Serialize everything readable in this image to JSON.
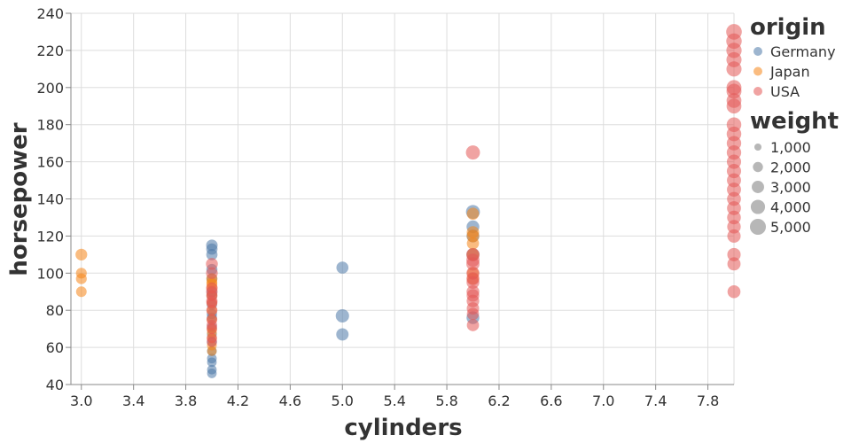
{
  "chart_data": {
    "type": "scatter",
    "xlabel": "cylinders",
    "ylabel": "horsepower",
    "xlim": [
      2.92,
      8.0
    ],
    "ylim": [
      40,
      240
    ],
    "x_ticks": [
      "3.0",
      "3.4",
      "3.8",
      "4.2",
      "4.6",
      "5.0",
      "5.4",
      "5.8",
      "6.2",
      "6.6",
      "7.0",
      "7.4",
      "7.8"
    ],
    "y_ticks": [
      "40",
      "60",
      "80",
      "100",
      "120",
      "140",
      "160",
      "180",
      "200",
      "220",
      "240"
    ],
    "grid": true,
    "legend_position": "right",
    "color_legend": {
      "title": "origin",
      "entries": [
        {
          "name": "Germany",
          "color": "#4c78a8"
        },
        {
          "name": "Japan",
          "color": "#f58518"
        },
        {
          "name": "USA",
          "color": "#e45756"
        }
      ]
    },
    "size_legend": {
      "title": "weight",
      "entries": [
        {
          "label": "1,000",
          "value": 1000
        },
        {
          "label": "2,000",
          "value": 2000
        },
        {
          "label": "3,000",
          "value": 3000
        },
        {
          "label": "4,000",
          "value": 4000
        },
        {
          "label": "5,000",
          "value": 5000
        }
      ]
    },
    "series": [
      {
        "name": "Germany",
        "points": [
          {
            "x": 4,
            "y": 115,
            "weight": 2600
          },
          {
            "x": 4,
            "y": 113,
            "weight": 2500
          },
          {
            "x": 4,
            "y": 110,
            "weight": 2500
          },
          {
            "x": 4,
            "y": 102,
            "weight": 2400
          },
          {
            "x": 4,
            "y": 97,
            "weight": 2300
          },
          {
            "x": 4,
            "y": 90,
            "weight": 2200
          },
          {
            "x": 4,
            "y": 88,
            "weight": 2200
          },
          {
            "x": 4,
            "y": 83,
            "weight": 2100
          },
          {
            "x": 4,
            "y": 78,
            "weight": 2100
          },
          {
            "x": 4,
            "y": 76,
            "weight": 2000
          },
          {
            "x": 4,
            "y": 71,
            "weight": 1950
          },
          {
            "x": 4,
            "y": 67,
            "weight": 1900
          },
          {
            "x": 4,
            "y": 63,
            "weight": 1900
          },
          {
            "x": 4,
            "y": 58,
            "weight": 1850
          },
          {
            "x": 4,
            "y": 54,
            "weight": 1850
          },
          {
            "x": 4,
            "y": 52,
            "weight": 1800
          },
          {
            "x": 4,
            "y": 48,
            "weight": 1800
          },
          {
            "x": 4,
            "y": 46,
            "weight": 1800
          },
          {
            "x": 5,
            "y": 103,
            "weight": 2850
          },
          {
            "x": 5,
            "y": 77,
            "weight": 3500
          },
          {
            "x": 5,
            "y": 67,
            "weight": 3000
          },
          {
            "x": 6,
            "y": 133,
            "weight": 3800
          },
          {
            "x": 6,
            "y": 125,
            "weight": 3200
          },
          {
            "x": 6,
            "y": 120,
            "weight": 3200
          },
          {
            "x": 6,
            "y": 110,
            "weight": 3200
          },
          {
            "x": 6,
            "y": 76,
            "weight": 3200
          }
        ]
      },
      {
        "name": "Japan",
        "points": [
          {
            "x": 3,
            "y": 110,
            "weight": 2700
          },
          {
            "x": 3,
            "y": 100,
            "weight": 2300
          },
          {
            "x": 3,
            "y": 97,
            "weight": 2300
          },
          {
            "x": 3,
            "y": 90,
            "weight": 2200
          },
          {
            "x": 4,
            "y": 97,
            "weight": 2400
          },
          {
            "x": 4,
            "y": 95,
            "weight": 2300
          },
          {
            "x": 4,
            "y": 94,
            "weight": 2300
          },
          {
            "x": 4,
            "y": 92,
            "weight": 2300
          },
          {
            "x": 4,
            "y": 88,
            "weight": 2200
          },
          {
            "x": 4,
            "y": 84,
            "weight": 2100
          },
          {
            "x": 4,
            "y": 80,
            "weight": 2100
          },
          {
            "x": 4,
            "y": 75,
            "weight": 2000
          },
          {
            "x": 4,
            "y": 70,
            "weight": 1950
          },
          {
            "x": 4,
            "y": 68,
            "weight": 1900
          },
          {
            "x": 4,
            "y": 65,
            "weight": 1900
          },
          {
            "x": 4,
            "y": 61,
            "weight": 1850
          },
          {
            "x": 4,
            "y": 58,
            "weight": 1800
          },
          {
            "x": 6,
            "y": 132,
            "weight": 2900
          },
          {
            "x": 6,
            "y": 122,
            "weight": 3000
          },
          {
            "x": 6,
            "y": 120,
            "weight": 3000
          },
          {
            "x": 6,
            "y": 116,
            "weight": 2900
          },
          {
            "x": 6,
            "y": 110,
            "weight": 2900
          },
          {
            "x": 6,
            "y": 100,
            "weight": 2800
          },
          {
            "x": 6,
            "y": 97,
            "weight": 2700
          }
        ]
      },
      {
        "name": "USA",
        "points": [
          {
            "x": 4,
            "y": 105,
            "weight": 2800
          },
          {
            "x": 4,
            "y": 100,
            "weight": 2700
          },
          {
            "x": 4,
            "y": 92,
            "weight": 2600
          },
          {
            "x": 4,
            "y": 90,
            "weight": 2600
          },
          {
            "x": 4,
            "y": 88,
            "weight": 2500
          },
          {
            "x": 4,
            "y": 85,
            "weight": 2500
          },
          {
            "x": 4,
            "y": 84,
            "weight": 2400
          },
          {
            "x": 4,
            "y": 80,
            "weight": 2400
          },
          {
            "x": 4,
            "y": 75,
            "weight": 2300
          },
          {
            "x": 4,
            "y": 72,
            "weight": 2200
          },
          {
            "x": 4,
            "y": 70,
            "weight": 2200
          },
          {
            "x": 4,
            "y": 65,
            "weight": 2100
          },
          {
            "x": 4,
            "y": 63,
            "weight": 2100
          },
          {
            "x": 6,
            "y": 165,
            "weight": 3900
          },
          {
            "x": 6,
            "y": 110,
            "weight": 3500
          },
          {
            "x": 6,
            "y": 107,
            "weight": 3400
          },
          {
            "x": 6,
            "y": 105,
            "weight": 3400
          },
          {
            "x": 6,
            "y": 100,
            "weight": 3300
          },
          {
            "x": 6,
            "y": 97,
            "weight": 3300
          },
          {
            "x": 6,
            "y": 95,
            "weight": 3200
          },
          {
            "x": 6,
            "y": 90,
            "weight": 3200
          },
          {
            "x": 6,
            "y": 88,
            "weight": 3100
          },
          {
            "x": 6,
            "y": 85,
            "weight": 3100
          },
          {
            "x": 6,
            "y": 81,
            "weight": 3000
          },
          {
            "x": 6,
            "y": 78,
            "weight": 2900
          },
          {
            "x": 6,
            "y": 72,
            "weight": 2900
          },
          {
            "x": 8,
            "y": 230,
            "weight": 4800
          },
          {
            "x": 8,
            "y": 225,
            "weight": 4700
          },
          {
            "x": 8,
            "y": 220,
            "weight": 4600
          },
          {
            "x": 8,
            "y": 215,
            "weight": 4500
          },
          {
            "x": 8,
            "y": 210,
            "weight": 4500
          },
          {
            "x": 8,
            "y": 200,
            "weight": 4400
          },
          {
            "x": 8,
            "y": 198,
            "weight": 4400
          },
          {
            "x": 8,
            "y": 193,
            "weight": 4300
          },
          {
            "x": 8,
            "y": 190,
            "weight": 4300
          },
          {
            "x": 8,
            "y": 180,
            "weight": 4200
          },
          {
            "x": 8,
            "y": 175,
            "weight": 4200
          },
          {
            "x": 8,
            "y": 170,
            "weight": 4100
          },
          {
            "x": 8,
            "y": 165,
            "weight": 4100
          },
          {
            "x": 8,
            "y": 160,
            "weight": 4000
          },
          {
            "x": 8,
            "y": 155,
            "weight": 4000
          },
          {
            "x": 8,
            "y": 150,
            "weight": 3900
          },
          {
            "x": 8,
            "y": 145,
            "weight": 3900
          },
          {
            "x": 8,
            "y": 140,
            "weight": 3800
          },
          {
            "x": 8,
            "y": 135,
            "weight": 3800
          },
          {
            "x": 8,
            "y": 130,
            "weight": 3700
          },
          {
            "x": 8,
            "y": 125,
            "weight": 3600
          },
          {
            "x": 8,
            "y": 120,
            "weight": 3500
          },
          {
            "x": 8,
            "y": 110,
            "weight": 3500
          },
          {
            "x": 8,
            "y": 105,
            "weight": 3400
          },
          {
            "x": 8,
            "y": 90,
            "weight": 3300
          }
        ]
      }
    ]
  }
}
